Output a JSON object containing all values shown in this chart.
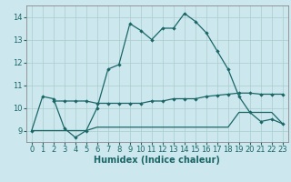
{
  "xlabel": "Humidex (Indice chaleur)",
  "bg_color": "#cce8ee",
  "grid_color": "#aacccc",
  "line_color": "#1a6666",
  "spine_color": "#888888",
  "xlim": [
    -0.5,
    23.5
  ],
  "ylim": [
    8.5,
    14.5
  ],
  "yticks": [
    9,
    10,
    11,
    12,
    13,
    14
  ],
  "xticks": [
    0,
    1,
    2,
    3,
    4,
    5,
    6,
    7,
    8,
    9,
    10,
    11,
    12,
    13,
    14,
    15,
    16,
    17,
    18,
    19,
    20,
    21,
    22,
    23
  ],
  "line1_x": [
    0,
    1,
    2,
    3,
    4,
    5,
    6,
    7,
    8,
    9,
    10,
    11,
    12,
    13,
    14,
    15,
    16,
    17,
    18,
    19,
    20,
    21,
    22,
    23
  ],
  "line1_y": [
    9.0,
    10.5,
    10.4,
    9.1,
    8.7,
    9.0,
    10.0,
    11.7,
    11.9,
    13.7,
    13.4,
    13.0,
    13.5,
    13.5,
    14.15,
    13.8,
    13.3,
    12.5,
    11.7,
    10.5,
    9.8,
    9.4,
    9.5,
    9.3
  ],
  "line2_x": [
    2,
    3,
    4,
    5,
    6,
    7,
    8,
    9,
    10,
    11,
    12,
    13,
    14,
    15,
    16,
    17,
    18,
    19,
    20,
    21,
    22,
    23
  ],
  "line2_y": [
    10.3,
    10.3,
    10.3,
    10.3,
    10.2,
    10.2,
    10.2,
    10.2,
    10.2,
    10.3,
    10.3,
    10.4,
    10.4,
    10.4,
    10.5,
    10.55,
    10.6,
    10.65,
    10.65,
    10.6,
    10.6,
    10.6
  ],
  "line3_x": [
    0,
    1,
    2,
    3,
    4,
    5,
    6,
    7,
    8,
    9,
    10,
    11,
    12,
    13,
    14,
    15,
    16,
    17,
    18,
    19,
    20,
    21,
    22,
    23
  ],
  "line3_y": [
    9.0,
    9.0,
    9.0,
    9.0,
    9.0,
    9.0,
    9.15,
    9.15,
    9.15,
    9.15,
    9.15,
    9.15,
    9.15,
    9.15,
    9.15,
    9.15,
    9.15,
    9.15,
    9.15,
    9.8,
    9.8,
    9.8,
    9.8,
    9.3
  ],
  "tick_fontsize": 6,
  "xlabel_fontsize": 7
}
